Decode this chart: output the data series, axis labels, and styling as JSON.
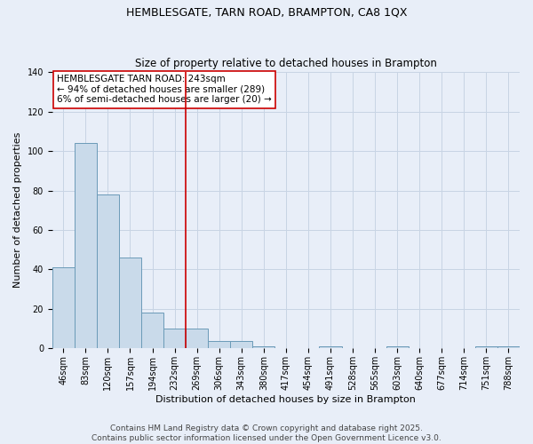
{
  "title": "HEMBLESGATE, TARN ROAD, BRAMPTON, CA8 1QX",
  "subtitle": "Size of property relative to detached houses in Brampton",
  "xlabel": "Distribution of detached houses by size in Brampton",
  "ylabel": "Number of detached properties",
  "bar_labels": [
    "46sqm",
    "83sqm",
    "120sqm",
    "157sqm",
    "194sqm",
    "232sqm",
    "269sqm",
    "306sqm",
    "343sqm",
    "380sqm",
    "417sqm",
    "454sqm",
    "491sqm",
    "528sqm",
    "565sqm",
    "603sqm",
    "640sqm",
    "677sqm",
    "714sqm",
    "751sqm",
    "788sqm"
  ],
  "bar_values": [
    41,
    104,
    78,
    46,
    18,
    10,
    10,
    4,
    4,
    1,
    0,
    0,
    1,
    0,
    0,
    1,
    0,
    0,
    0,
    1,
    1
  ],
  "bar_color": "#c9daea",
  "bar_edge_color": "#6b9ab8",
  "vline_x": 5.5,
  "vline_color": "#cc0000",
  "annotation_text": "HEMBLESGATE TARN ROAD: 243sqm\n← 94% of detached houses are smaller (289)\n6% of semi-detached houses are larger (20) →",
  "annotation_box_color": "#ffffff",
  "annotation_box_edge_color": "#cc0000",
  "ylim": [
    0,
    140
  ],
  "yticks": [
    0,
    20,
    40,
    60,
    80,
    100,
    120,
    140
  ],
  "grid_color": "#c8d4e4",
  "background_color": "#e8eef8",
  "footer": "Contains HM Land Registry data © Crown copyright and database right 2025.\nContains public sector information licensed under the Open Government Licence v3.0.",
  "title_fontsize": 9,
  "subtitle_fontsize": 8.5,
  "axis_label_fontsize": 8,
  "tick_fontsize": 7,
  "annotation_fontsize": 7.5,
  "footer_fontsize": 6.5
}
